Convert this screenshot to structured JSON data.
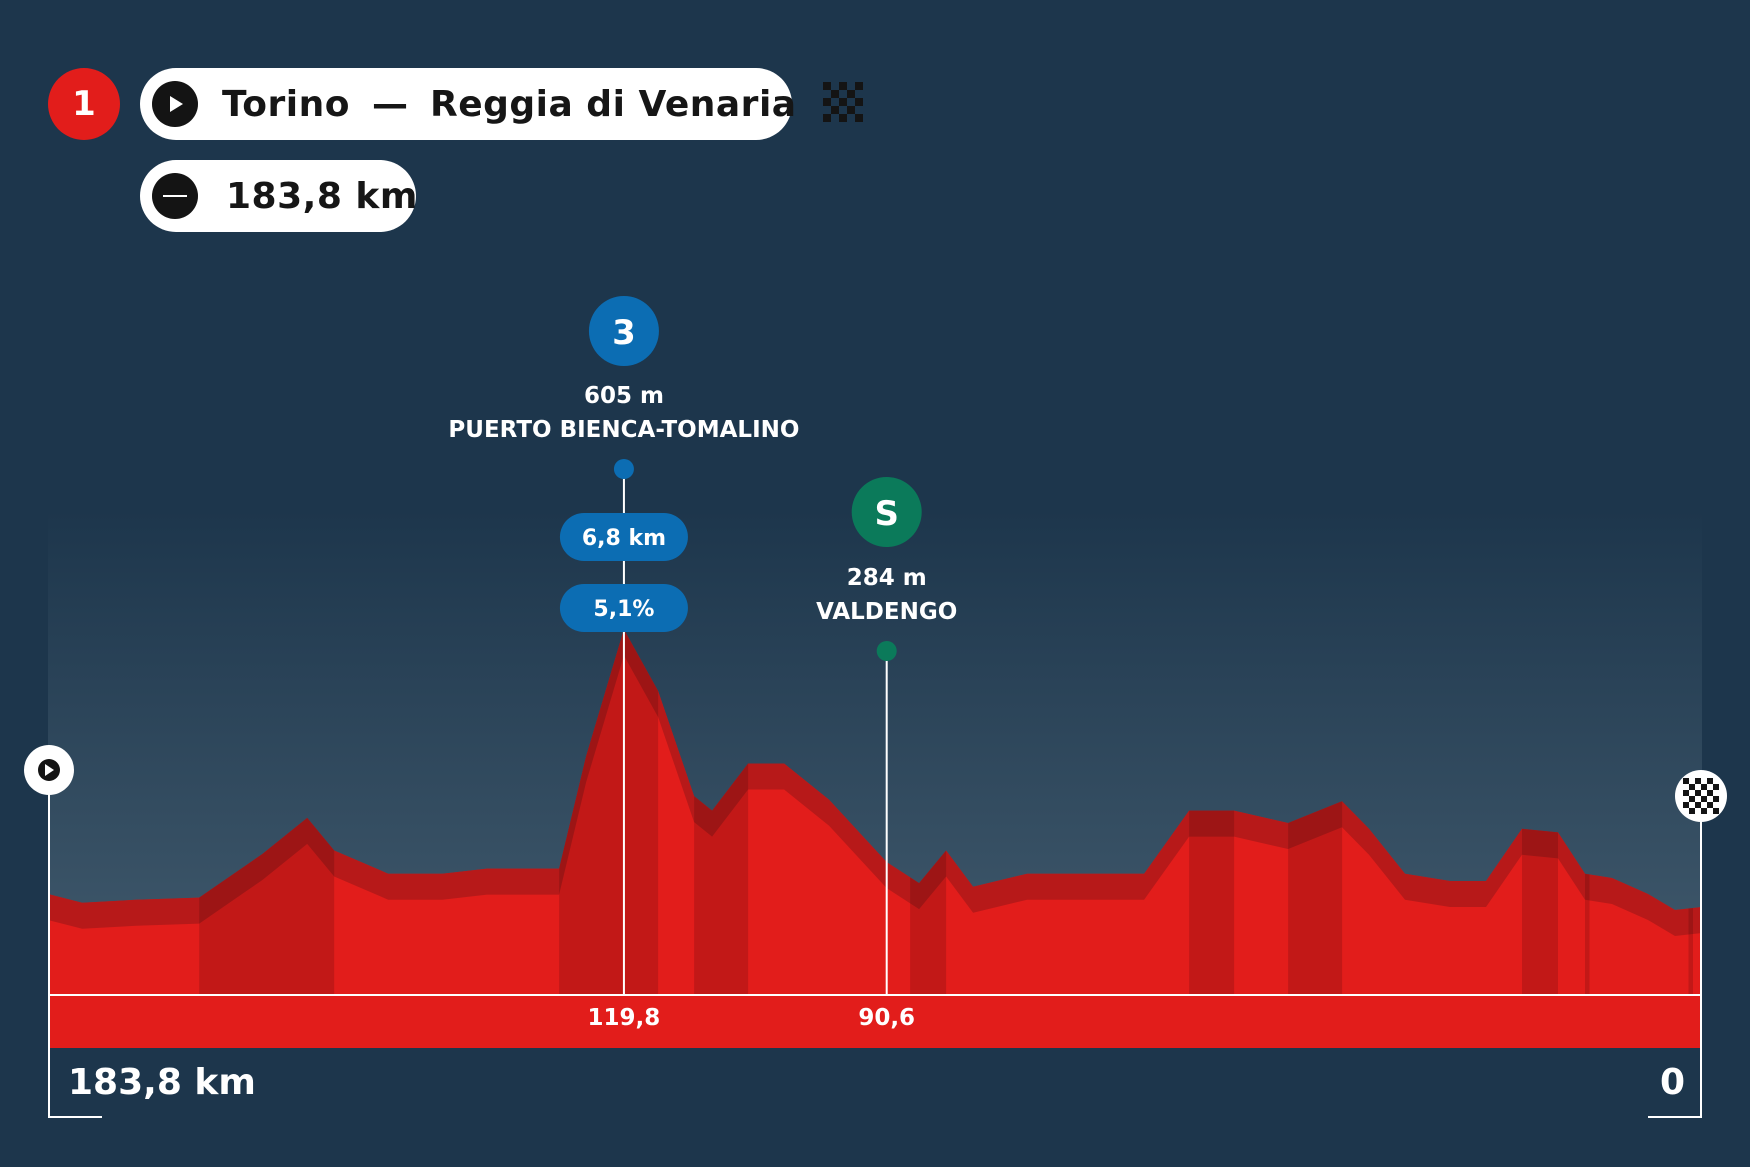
{
  "header": {
    "stage_number": "1",
    "route_start": "Torino",
    "route_separator": "—",
    "route_finish": "Reggia di Venaria",
    "distance": "183,8 km",
    "play_icon": "play-icon",
    "finish_icon": "checkered-flag-icon",
    "flat_icon": "minus-icon"
  },
  "colors": {
    "background": "#1d364c",
    "profile_red": "#e21d1b",
    "climb_blue": "#0c6db3",
    "sprint_green": "#0b7a5a"
  },
  "chart_data": {
    "type": "area",
    "title": "",
    "xlabel": "",
    "ylabel": "",
    "x_axis": "distance to finish (km), decreasing left to right",
    "xlim": [
      183.8,
      0
    ],
    "start_label": "183,8 km",
    "finish_label": "0",
    "elevation_profile": [
      {
        "km": 183.8,
        "ele": 240
      },
      {
        "km": 180,
        "ele": 228
      },
      {
        "km": 174,
        "ele": 232
      },
      {
        "km": 167,
        "ele": 235
      },
      {
        "km": 160,
        "ele": 295
      },
      {
        "km": 155,
        "ele": 345
      },
      {
        "km": 152,
        "ele": 300
      },
      {
        "km": 146,
        "ele": 268
      },
      {
        "km": 140,
        "ele": 268
      },
      {
        "km": 135,
        "ele": 275
      },
      {
        "km": 127,
        "ele": 275
      },
      {
        "km": 124,
        "ele": 430
      },
      {
        "km": 119.8,
        "ele": 605
      },
      {
        "km": 116,
        "ele": 520
      },
      {
        "km": 112,
        "ele": 375
      },
      {
        "km": 110,
        "ele": 355
      },
      {
        "km": 106,
        "ele": 420
      },
      {
        "km": 102,
        "ele": 420
      },
      {
        "km": 97,
        "ele": 370
      },
      {
        "km": 90.6,
        "ele": 284
      },
      {
        "km": 87,
        "ele": 255
      },
      {
        "km": 84,
        "ele": 300
      },
      {
        "km": 81,
        "ele": 250
      },
      {
        "km": 75,
        "ele": 268
      },
      {
        "km": 70,
        "ele": 268
      },
      {
        "km": 62,
        "ele": 268
      },
      {
        "km": 57,
        "ele": 355
      },
      {
        "km": 52,
        "ele": 355
      },
      {
        "km": 46,
        "ele": 338
      },
      {
        "km": 40,
        "ele": 368
      },
      {
        "km": 37,
        "ele": 330
      },
      {
        "km": 33,
        "ele": 268
      },
      {
        "km": 28,
        "ele": 258
      },
      {
        "km": 24,
        "ele": 258
      },
      {
        "km": 20,
        "ele": 330
      },
      {
        "km": 16,
        "ele": 325
      },
      {
        "km": 13,
        "ele": 268
      },
      {
        "km": 10,
        "ele": 262
      },
      {
        "km": 6,
        "ele": 240
      },
      {
        "km": 3,
        "ele": 218
      },
      {
        "km": 0,
        "ele": 222
      }
    ],
    "climbs": [
      {
        "category": "3",
        "name": "PUERTO BIENCA-TOMALINO",
        "altitude": "605 m",
        "km": 119.8,
        "km_label": "119,8",
        "length": "6,8 km",
        "gradient": "5,1%"
      }
    ],
    "sprints": [
      {
        "label": "S",
        "name": "VALDENGO",
        "altitude": "284 m",
        "km": 90.6,
        "km_label": "90,6"
      }
    ]
  }
}
